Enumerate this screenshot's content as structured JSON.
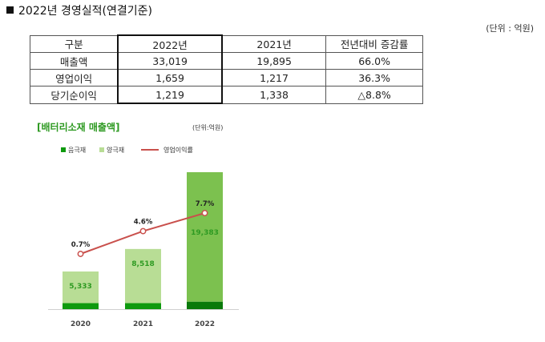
{
  "title": "2022년 경영실적(연결기준)",
  "unit": "(단위 : 억원)",
  "table": {
    "headers": [
      "구분",
      "2022년",
      "2021년",
      "전년대비  증감률"
    ],
    "rows": [
      [
        "매출액",
        "33,019",
        "19,895",
        "66.0%"
      ],
      [
        "영업이익",
        "1,659",
        "1,217",
        "36.3%"
      ],
      [
        "당기순이익",
        "1,219",
        "1,338",
        "△8.8%"
      ]
    ]
  },
  "chart_data": {
    "type": "bar",
    "title": "[배터리소재 매출액]",
    "unit": "(단위:억원)",
    "categories": [
      "2020",
      "2021",
      "2022"
    ],
    "legend": [
      "음극재",
      "양극재",
      "영업이익률"
    ],
    "series": [
      {
        "name": "음극재",
        "values": [
          850,
          850,
          1050
        ],
        "color": "#0e9a0e"
      },
      {
        "name": "양극재",
        "values": [
          4483,
          7668,
          18333
        ],
        "color": "#b8dd95"
      },
      {
        "name": "영업이익률",
        "type": "line",
        "values": [
          0.7,
          4.6,
          7.7
        ],
        "labels": [
          "0.7%",
          "4.6%",
          "7.7%"
        ],
        "color": "#c9504c"
      }
    ],
    "total_labels": [
      "5,333",
      "8,518",
      "19,383"
    ],
    "colors": {
      "anode_bar": "#0e9a0e",
      "anode_bar_2022": "#0a7a0a",
      "cathode_bar": "#b8dd95",
      "cathode_bar_2022": "#7cc14f",
      "value_label": "#2e9a22",
      "margin_line": "#c9504c"
    }
  }
}
